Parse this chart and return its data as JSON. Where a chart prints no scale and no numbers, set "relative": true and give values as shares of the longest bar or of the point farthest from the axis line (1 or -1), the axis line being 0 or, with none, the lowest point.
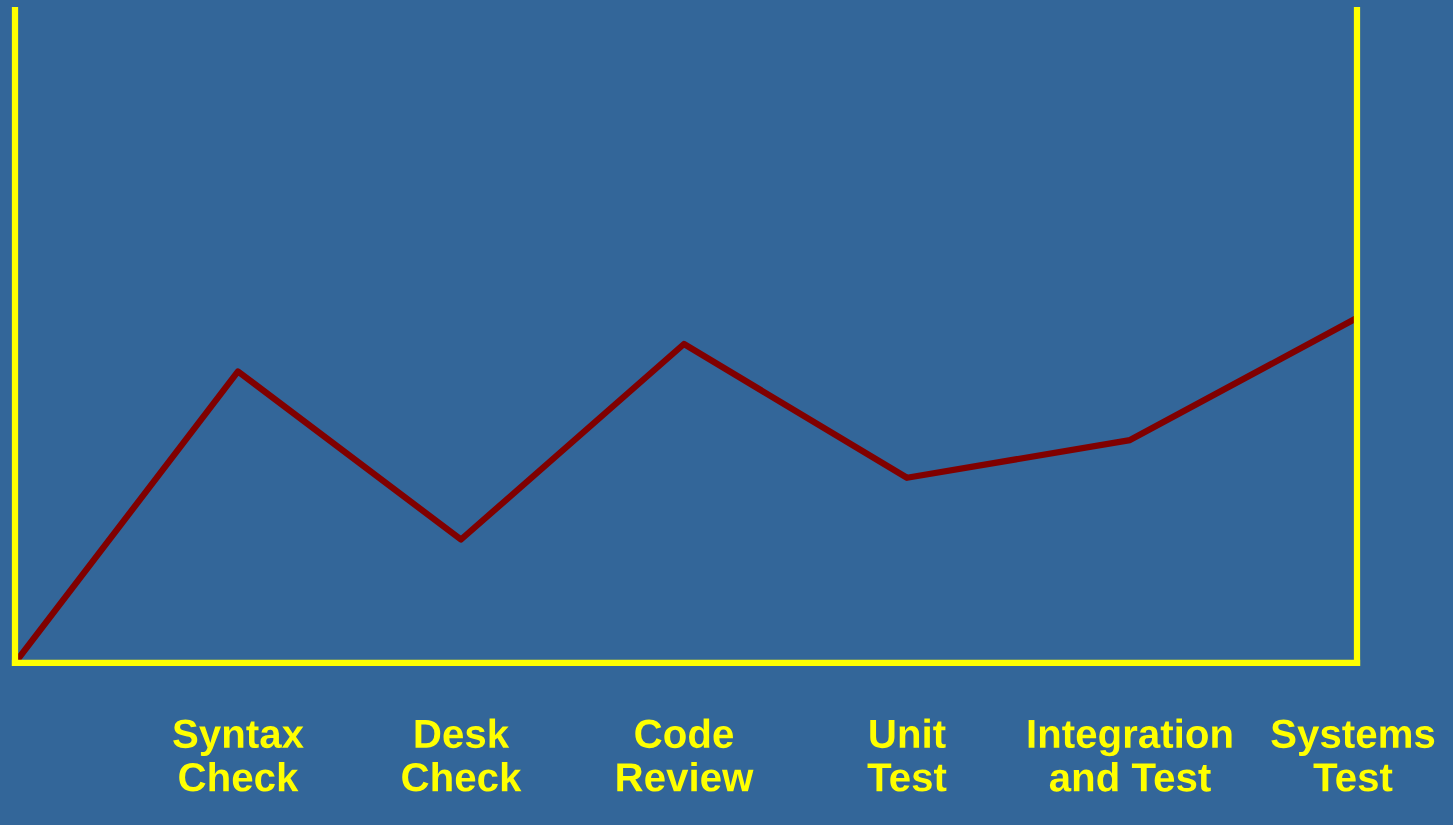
{
  "chart_data": {
    "type": "line",
    "relative": true,
    "categories": [
      null,
      "Syntax\nCheck",
      "Desk\nCheck",
      "Code\nReview",
      "Unit\nTest",
      "Integration\nand Test",
      "Systems\nTest"
    ],
    "series": [
      {
        "color": "#800000",
        "values": [
          0,
          0.85,
          0.36,
          0.93,
          0.54,
          0.65,
          1.0
        ]
      }
    ],
    "grid": false,
    "legend": false,
    "marker": "none",
    "line_style": "solid"
  }
}
